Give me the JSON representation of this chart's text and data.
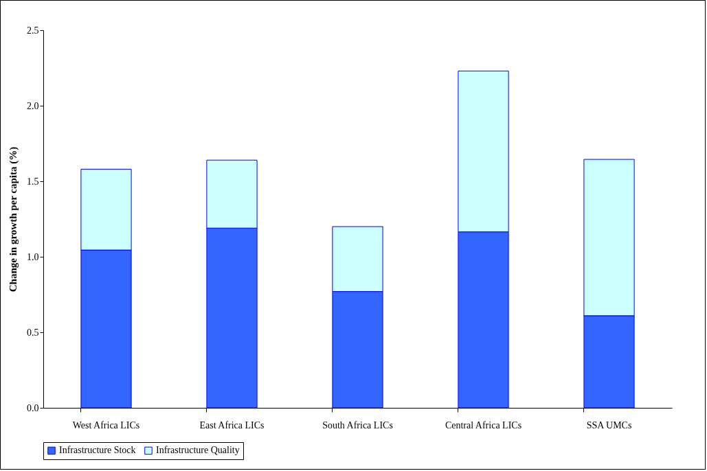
{
  "chart_data": {
    "type": "bar",
    "stacked": true,
    "ylabel": "Change in growth per capita (%)",
    "categories": [
      "West Africa LICs",
      "East Africa LICs",
      "South Africa LICs",
      "Central Africa LICs",
      "SSA UMCs"
    ],
    "series": [
      {
        "name": "Infrastructure Stock",
        "color": "#3366ff",
        "values": [
          1.045,
          1.19,
          0.77,
          1.165,
          0.61
        ]
      },
      {
        "name": "Infrastructure Quality",
        "color": "#ccffff",
        "values": [
          0.535,
          0.45,
          0.43,
          1.065,
          1.035
        ]
      }
    ],
    "ylim": [
      0,
      2.5
    ],
    "yticks": [
      {
        "value": 0,
        "label": "0.0"
      },
      {
        "value": 0.5,
        "label": "0.5"
      },
      {
        "value": 1,
        "label": "1.0"
      },
      {
        "value": 1.5,
        "label": "1.5"
      },
      {
        "value": 2,
        "label": "2.0"
      },
      {
        "value": 2.5,
        "label": "2.5"
      }
    ],
    "grid": false,
    "legend": "bottom"
  }
}
